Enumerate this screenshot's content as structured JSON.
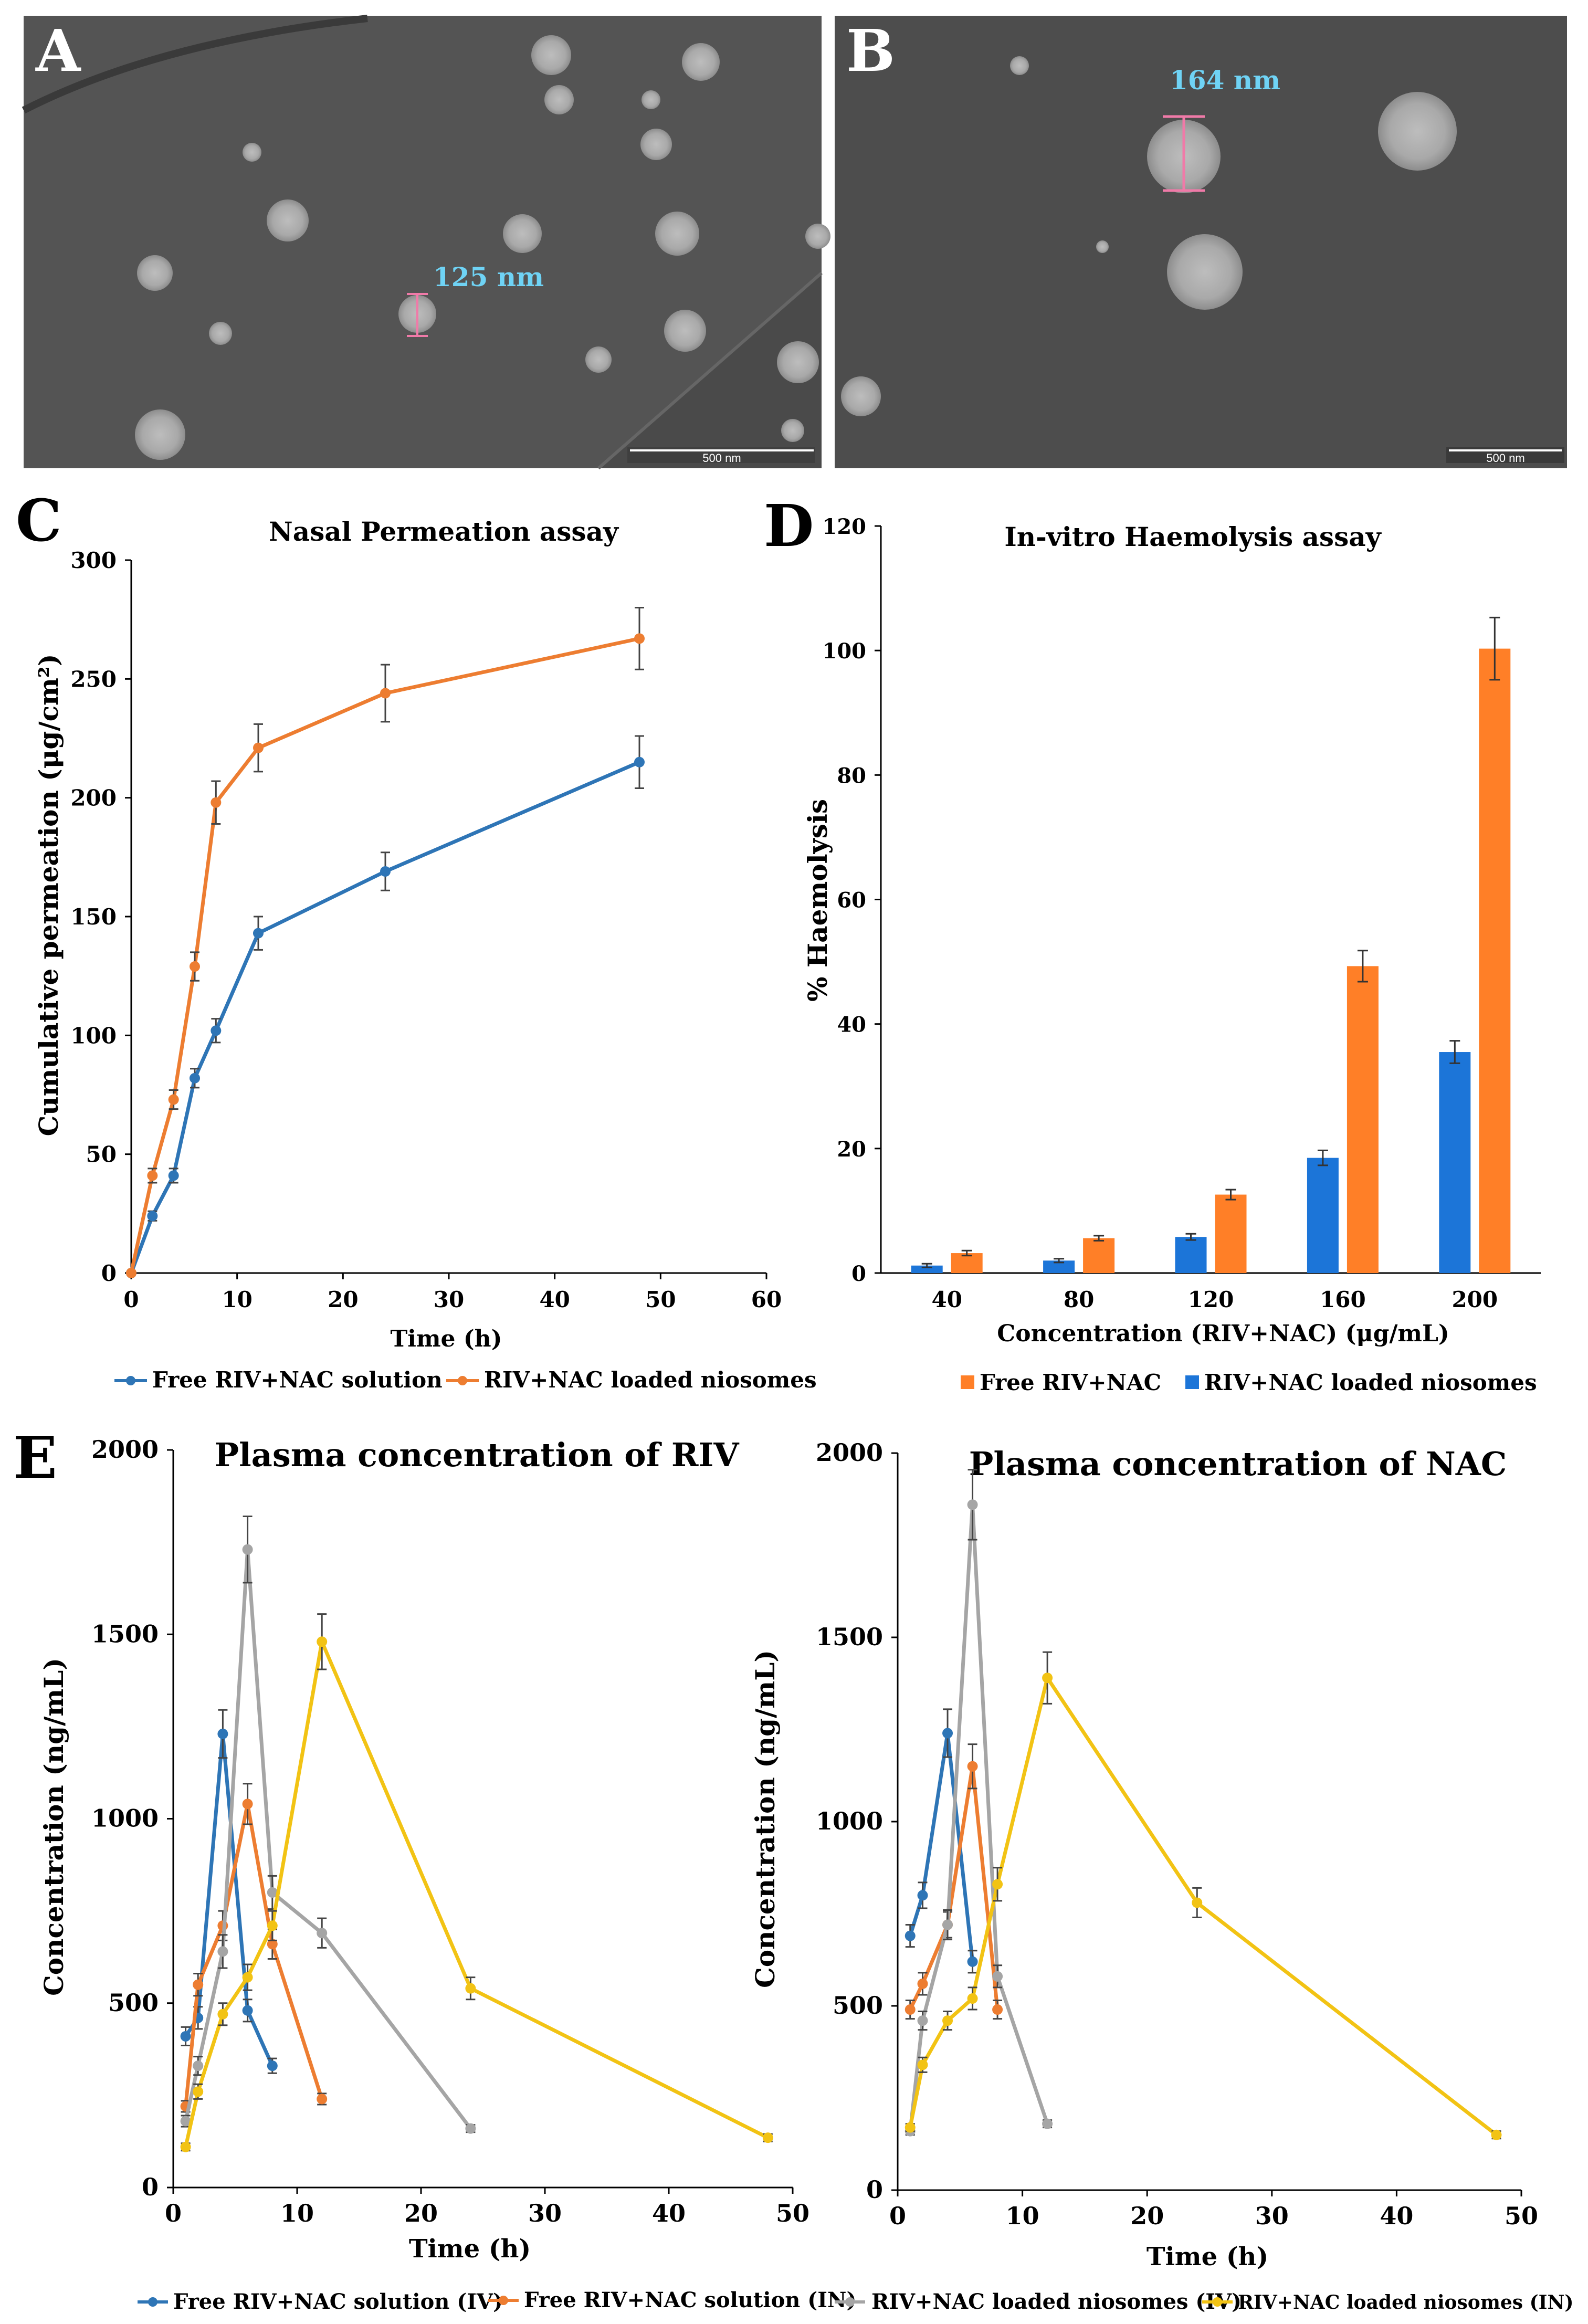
{
  "panels": {
    "A": {
      "letter": "A",
      "measure_label": "125 nm",
      "scale_label": "500 nm"
    },
    "B": {
      "letter": "B",
      "measure_label": "164 nm",
      "scale_label": "500 nm"
    },
    "C": {
      "letter": "C"
    },
    "D": {
      "letter": "D"
    },
    "E": {
      "letter": "E"
    }
  },
  "colors": {
    "blue": "#2e75b6",
    "orange": "#ed7d31",
    "gray": "#a5a5a5",
    "yellow": "#f2c314",
    "bar_orange": "#ff7f27",
    "bar_blue": "#1c75d8",
    "cyan_label": "#6fd3f5",
    "pink_bar": "#f06aa0"
  },
  "chart_data": [
    {
      "id": "C",
      "type": "line",
      "title": "Nasal Permeation assay",
      "xlabel": "Time (h)",
      "ylabel": "Cumulative permeation (μg/cm²)",
      "xlim": [
        0,
        60
      ],
      "ylim": [
        0,
        300
      ],
      "xticks": [
        0,
        10,
        20,
        30,
        40,
        50,
        60
      ],
      "yticks": [
        0,
        50,
        100,
        150,
        200,
        250,
        300
      ],
      "series": [
        {
          "name": "Free RIV+NAC solution",
          "color": "#2e75b6",
          "x": [
            0,
            2,
            4,
            6,
            8,
            12,
            24,
            48
          ],
          "y": [
            0,
            24,
            41,
            82,
            102,
            143,
            169,
            215
          ],
          "err": [
            0,
            2,
            3,
            4,
            5,
            7,
            8,
            11
          ]
        },
        {
          "name": "RIV+NAC loaded niosomes",
          "color": "#ed7d31",
          "x": [
            0,
            2,
            4,
            6,
            8,
            12,
            24,
            48
          ],
          "y": [
            0,
            41,
            73,
            129,
            198,
            221,
            244,
            267
          ],
          "err": [
            0,
            3,
            4,
            6,
            9,
            10,
            12,
            13
          ]
        }
      ]
    },
    {
      "id": "D",
      "type": "bar",
      "title": "In-vitro Haemolysis assay",
      "xlabel": "Concentration (RIV+NAC) (μg/mL)",
      "ylabel": "% Haemolysis",
      "categories": [
        "40",
        "80",
        "120",
        "160",
        "200"
      ],
      "ylim": [
        0,
        120
      ],
      "yticks": [
        0,
        20,
        40,
        60,
        80,
        100,
        120
      ],
      "series": [
        {
          "name": "RIV+NAC loaded niosomes",
          "color": "#1c75d8",
          "values": [
            1.2,
            2.0,
            5.8,
            18.5,
            35.5
          ],
          "err": [
            0.3,
            0.3,
            0.5,
            1.2,
            1.8
          ]
        },
        {
          "name": "Free RIV+NAC",
          "color": "#ff7f27",
          "values": [
            3.2,
            5.6,
            12.6,
            49.3,
            100.3
          ],
          "err": [
            0.4,
            0.4,
            0.8,
            2.5,
            5.0
          ]
        }
      ],
      "legend_order": [
        "Free RIV+NAC",
        "RIV+NAC loaded niosomes"
      ]
    },
    {
      "id": "E1",
      "type": "line",
      "title": "Plasma concentration of RIV",
      "xlabel": "Time (h)",
      "ylabel": "Concentration (ng/mL)",
      "xlim": [
        0,
        50
      ],
      "ylim": [
        0,
        2000
      ],
      "xticks": [
        0,
        10,
        20,
        30,
        40,
        50
      ],
      "yticks": [
        0,
        500,
        1000,
        1500,
        2000
      ],
      "series": [
        {
          "name": "Free RIV+NAC solution (IV)",
          "color": "#2e75b6",
          "x": [
            1,
            2,
            4,
            6,
            8
          ],
          "y": [
            410,
            460,
            1230,
            480,
            330
          ],
          "err": [
            25,
            30,
            65,
            30,
            20
          ]
        },
        {
          "name": "Free RIV+NAC solution (IN)",
          "color": "#ed7d31",
          "x": [
            1,
            2,
            4,
            6,
            8,
            12
          ],
          "y": [
            220,
            550,
            710,
            1040,
            660,
            240
          ],
          "err": [
            15,
            30,
            40,
            55,
            40,
            15
          ]
        },
        {
          "name": "RIV+NAC loaded niosomes (IV)",
          "color": "#a5a5a5",
          "x": [
            1,
            2,
            4,
            6,
            8,
            12,
            24
          ],
          "y": [
            180,
            330,
            640,
            1730,
            800,
            690,
            160
          ],
          "err": [
            15,
            25,
            45,
            90,
            45,
            40,
            10
          ]
        },
        {
          "name": "RIV+NAC loaded niosomes (IN)",
          "color": "#f2c314",
          "x": [
            1,
            2,
            4,
            6,
            8,
            12,
            24,
            48
          ],
          "y": [
            110,
            260,
            470,
            570,
            710,
            1480,
            540,
            135
          ],
          "err": [
            10,
            20,
            30,
            35,
            40,
            75,
            30,
            10
          ]
        }
      ]
    },
    {
      "id": "E2",
      "type": "line",
      "title": "Plasma concentration of NAC",
      "xlabel": "Time (h)",
      "ylabel": "Concentration (ng/mL)",
      "xlim": [
        0,
        50
      ],
      "ylim": [
        0,
        2000
      ],
      "xticks": [
        0,
        10,
        20,
        30,
        40,
        50
      ],
      "yticks": [
        0,
        500,
        1000,
        1500,
        2000
      ],
      "series": [
        {
          "name": "Free RIV+NAC solution (IV)",
          "color": "#2e75b6",
          "x": [
            1,
            2,
            4,
            6
          ],
          "y": [
            690,
            800,
            1240,
            620
          ],
          "err": [
            30,
            35,
            65,
            30
          ]
        },
        {
          "name": "Free RIV+NAC solution (IN)",
          "color": "#ed7d31",
          "x": [
            1,
            2,
            4,
            6,
            8
          ],
          "y": [
            490,
            560,
            720,
            1150,
            490
          ],
          "err": [
            25,
            30,
            35,
            60,
            25
          ]
        },
        {
          "name": "RIV+NAC loaded niosomes (IV)",
          "color": "#a5a5a5",
          "x": [
            1,
            2,
            4,
            6,
            8,
            12
          ],
          "y": [
            160,
            460,
            720,
            1860,
            580,
            180
          ],
          "err": [
            10,
            25,
            40,
            95,
            30,
            10
          ]
        },
        {
          "name": "RIV+NAC loaded niosomes (IN)",
          "color": "#f2c314",
          "x": [
            1,
            2,
            4,
            6,
            8,
            12,
            24,
            48
          ],
          "y": [
            170,
            340,
            460,
            520,
            830,
            1390,
            780,
            150
          ],
          "err": [
            10,
            20,
            25,
            30,
            45,
            70,
            40,
            10
          ]
        }
      ]
    }
  ]
}
